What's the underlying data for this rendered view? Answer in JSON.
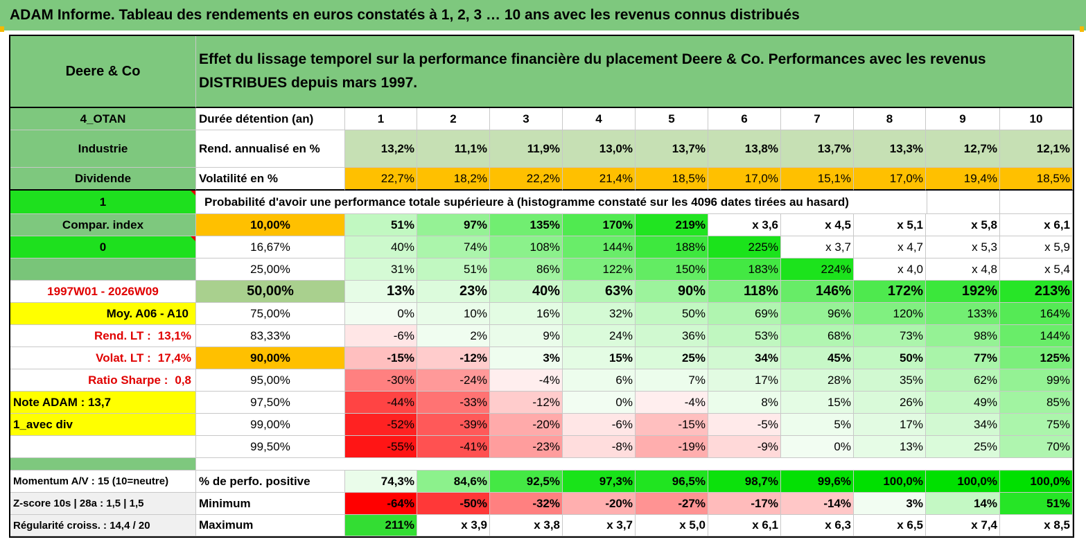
{
  "title": "ADAM Informe. Tableau des rendements en euros constatés à 1, 2, 3 … 10 ans avec les revenus connus distribués",
  "company": "Deere & Co",
  "header_text": "Effet du lissage temporel sur la performance financière du placement Deere & Co. Performances avec les revenus DISTRIBUES depuis mars 1997.",
  "left_col": {
    "code": "4_OTAN",
    "sector": "Industrie",
    "type": "Dividende",
    "flag1": "1",
    "compar": "Compar. index",
    "flag0": "0",
    "blank": "",
    "period": "1997W01 - 2026W09",
    "moy": "Moy. A06 - A10",
    "rend_label": "Rend. LT :",
    "rend_value": "13,1%",
    "volat_label": "Volat. LT :",
    "volat_value": "17,4%",
    "sharpe_label": "Ratio Sharpe :",
    "sharpe_value": "0,8",
    "note": "Note ADAM : 13,7",
    "avec_div": "1_avec div",
    "momentum": "Momentum A/V : 15 (10=neutre)",
    "zscore": "Z-score 10s | 28a : 1,5 | 1,5",
    "regularite": "Régularité croiss. : 14,4 / 20"
  },
  "labels": {
    "duree": "Durée détention (an)",
    "rend": "Rend. annualisé en %",
    "volat": "Volatilité en %",
    "prob": "Probabilité d'avoir une performance totale supérieure à (histogramme constaté sur les 4096 dates tirées au hasard)",
    "perf_pos": "% de perfo. positive",
    "minimum": "Minimum",
    "maximum": "Maximum"
  },
  "years": [
    "1",
    "2",
    "3",
    "4",
    "5",
    "6",
    "7",
    "8",
    "9",
    "10"
  ],
  "rend": [
    "13,2%",
    "11,1%",
    "11,9%",
    "13,0%",
    "13,7%",
    "13,8%",
    "13,7%",
    "13,3%",
    "12,7%",
    "12,1%"
  ],
  "volat": [
    "22,7%",
    "18,2%",
    "22,2%",
    "21,4%",
    "18,5%",
    "17,0%",
    "15,1%",
    "17,0%",
    "19,4%",
    "18,5%"
  ],
  "prob_rows": [
    {
      "pct": "10,00%",
      "values": [
        "51%",
        "97%",
        "135%",
        "170%",
        "219%",
        "x 3,6",
        "x 4,5",
        "x 5,1",
        "x 5,8",
        "x 6,1"
      ]
    },
    {
      "pct": "16,67%",
      "values": [
        "40%",
        "74%",
        "108%",
        "144%",
        "188%",
        "225%",
        "x 3,7",
        "x 4,7",
        "x 5,3",
        "x 5,9"
      ]
    },
    {
      "pct": "25,00%",
      "values": [
        "31%",
        "51%",
        "86%",
        "122%",
        "150%",
        "183%",
        "224%",
        "x 4,0",
        "x 4,8",
        "x 5,4"
      ]
    },
    {
      "pct": "50,00%",
      "values": [
        "13%",
        "23%",
        "40%",
        "63%",
        "90%",
        "118%",
        "146%",
        "172%",
        "192%",
        "213%"
      ]
    },
    {
      "pct": "75,00%",
      "values": [
        "0%",
        "10%",
        "16%",
        "32%",
        "50%",
        "69%",
        "96%",
        "120%",
        "133%",
        "164%"
      ]
    },
    {
      "pct": "83,33%",
      "values": [
        "-6%",
        "2%",
        "9%",
        "24%",
        "36%",
        "53%",
        "68%",
        "73%",
        "98%",
        "144%"
      ]
    },
    {
      "pct": "90,00%",
      "values": [
        "-15%",
        "-12%",
        "3%",
        "15%",
        "25%",
        "34%",
        "45%",
        "50%",
        "77%",
        "125%"
      ]
    },
    {
      "pct": "95,00%",
      "values": [
        "-30%",
        "-24%",
        "-4%",
        "6%",
        "7%",
        "17%",
        "28%",
        "35%",
        "62%",
        "99%"
      ]
    },
    {
      "pct": "97,50%",
      "values": [
        "-44%",
        "-33%",
        "-12%",
        "0%",
        "-4%",
        "8%",
        "15%",
        "26%",
        "49%",
        "85%"
      ]
    },
    {
      "pct": "99,00%",
      "values": [
        "-52%",
        "-39%",
        "-20%",
        "-6%",
        "-15%",
        "-5%",
        "5%",
        "17%",
        "34%",
        "75%"
      ]
    },
    {
      "pct": "99,50%",
      "values": [
        "-55%",
        "-41%",
        "-23%",
        "-8%",
        "-19%",
        "-9%",
        "0%",
        "13%",
        "25%",
        "70%"
      ]
    }
  ],
  "perf_pos": [
    "74,3%",
    "84,6%",
    "92,5%",
    "97,3%",
    "96,5%",
    "98,7%",
    "99,6%",
    "100,0%",
    "100,0%",
    "100,0%"
  ],
  "minimum": [
    "-64%",
    "-50%",
    "-32%",
    "-20%",
    "-27%",
    "-17%",
    "-14%",
    "3%",
    "14%",
    "51%"
  ],
  "maximum": [
    "211%",
    "x 3,9",
    "x 3,8",
    "x 3,7",
    "x 5,0",
    "x 6,1",
    "x 6,3",
    "x 6,5",
    "x 7,4",
    "x 8,5"
  ],
  "colors": {
    "header_green": "#7ec87e",
    "bright_green": "#1ee01e",
    "yellow": "#ffff00",
    "orange": "#ffc000",
    "red_text": "#e00000",
    "rend_bg": "#c6e0b4",
    "heat_max_green": "#00e000",
    "heat_max_red": "#ff0000"
  }
}
